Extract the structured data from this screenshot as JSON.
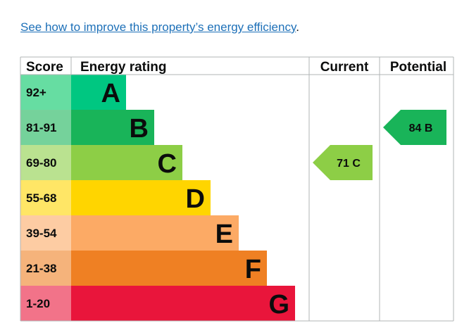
{
  "link": {
    "text": "See how to improve this property’s energy efficiency",
    "suffix": "."
  },
  "chart_data": {
    "type": "bar",
    "headers": {
      "score": "Score",
      "rating": "Energy rating",
      "current": "Current",
      "potential": "Potential"
    },
    "bands": [
      {
        "letter": "A",
        "range": "92+",
        "bar_color": "#00c781",
        "score_bg": "#66dda2",
        "text_color": "#0b0c0c"
      },
      {
        "letter": "B",
        "range": "81-91",
        "bar_color": "#19b459",
        "score_bg": "#75d29b",
        "text_color": "#0b0c0c"
      },
      {
        "letter": "C",
        "range": "69-80",
        "bar_color": "#8dce46",
        "score_bg": "#bae290",
        "text_color": "#0b0c0c"
      },
      {
        "letter": "D",
        "range": "55-68",
        "bar_color": "#ffd500",
        "score_bg": "#ffe666",
        "text_color": "#0b0c0c"
      },
      {
        "letter": "E",
        "range": "39-54",
        "bar_color": "#fcaa65",
        "score_bg": "#fdcca3",
        "text_color": "#0b0c0c"
      },
      {
        "letter": "F",
        "range": "21-38",
        "bar_color": "#ef8023",
        "score_bg": "#f5b37b",
        "text_color": "#0b0c0c"
      },
      {
        "letter": "G",
        "range": "1-20",
        "bar_color": "#e9153b",
        "score_bg": "#f27389",
        "text_color": "#0b0c0c"
      }
    ],
    "current": {
      "score": 71,
      "band": "C",
      "label": "71 C",
      "color": "#8dce46"
    },
    "potential": {
      "score": 84,
      "band": "B",
      "label": "84 B",
      "color": "#19b459"
    }
  }
}
